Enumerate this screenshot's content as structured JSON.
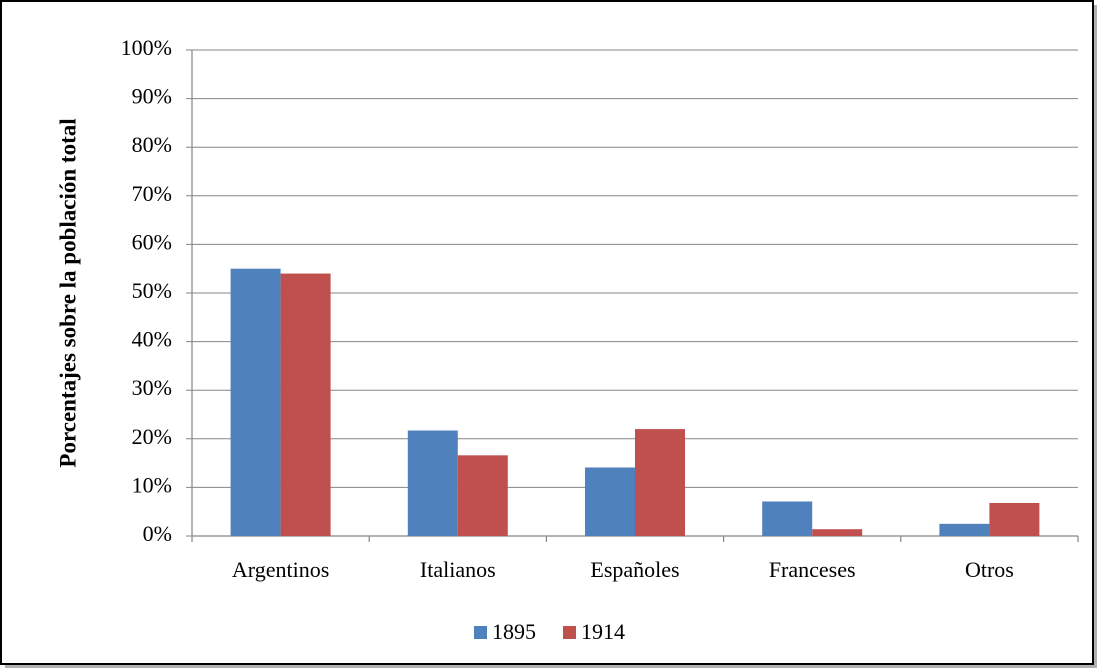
{
  "chart_data": {
    "type": "bar",
    "y_label": "Porcentajes sobre la población total",
    "categories": [
      "Argentinos",
      "Italianos",
      "Españoles",
      "Franceses",
      "Otros"
    ],
    "series": [
      {
        "name": "1895",
        "color": "#4f81bd",
        "values": [
          55,
          21.7,
          14.1,
          7.1,
          2.5
        ]
      },
      {
        "name": "1914",
        "color": "#c0504d",
        "values": [
          54,
          16.6,
          22,
          1.4,
          6.8
        ]
      }
    ],
    "ylim": [
      0,
      100
    ],
    "yticks": [
      {
        "value": 0,
        "label": "0%"
      },
      {
        "value": 10,
        "label": "10%"
      },
      {
        "value": 20,
        "label": "20%"
      },
      {
        "value": 30,
        "label": "30%"
      },
      {
        "value": 40,
        "label": "40%"
      },
      {
        "value": 50,
        "label": "50%"
      },
      {
        "value": 60,
        "label": "60%"
      },
      {
        "value": 70,
        "label": "70%"
      },
      {
        "value": 80,
        "label": "80%"
      },
      {
        "value": 90,
        "label": "90%"
      },
      {
        "value": 100,
        "label": "100%"
      }
    ],
    "grid": true,
    "legend": "bottom"
  }
}
